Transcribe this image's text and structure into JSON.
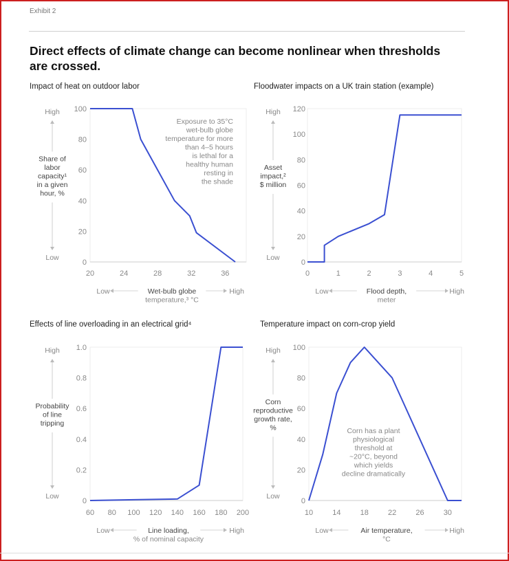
{
  "exhibit_label": "Exhibit 2",
  "headline": "Direct effects of climate change can become nonlinear when thresholds are crossed.",
  "colors": {
    "line": "#3a4fd1",
    "frame": "#cc1f1f",
    "axis": "#dddddd",
    "muted_text": "#888888"
  },
  "chart_data": [
    {
      "id": "heat",
      "type": "line",
      "title": "Impact of heat on outdoor labor",
      "ylabel_lines": [
        "Share of",
        "labor",
        "capacity¹",
        "in a given",
        "hour, %"
      ],
      "y_high": "High",
      "y_low": "Low",
      "xlabel_lines": [
        "Wet-bulb globe",
        "temperature,³ °C"
      ],
      "x_low": "Low",
      "x_high": "High",
      "xlim": [
        20,
        38.5
      ],
      "ylim": [
        0,
        100
      ],
      "xticks": [
        20,
        24,
        28,
        32,
        36
      ],
      "yticks": [
        0,
        20,
        40,
        60,
        80,
        100
      ],
      "x": [
        20,
        25,
        26,
        30,
        31.8,
        32.6,
        37.2
      ],
      "y": [
        100,
        100,
        80,
        40,
        30,
        19,
        0
      ],
      "annotation_lines": [
        "Exposure to 35°C",
        "wet-bulb globe",
        "temperature for more",
        "than 4–5 hours",
        "is lethal for a",
        "healthy human",
        "resting in",
        "the shade"
      ],
      "annotation_anchor": "end"
    },
    {
      "id": "flood",
      "type": "line",
      "title": "Floodwater impacts on a UK train station (example)",
      "ylabel_lines": [
        "Asset",
        "impact,²",
        "$ million"
      ],
      "y_high": "High",
      "y_low": "Low",
      "xlabel_lines": [
        "Flood depth,",
        "meter"
      ],
      "x_low": "Low",
      "x_high": "High",
      "xlim": [
        0,
        5
      ],
      "ylim": [
        0,
        120
      ],
      "xticks": [
        0,
        1,
        2,
        3,
        4,
        5
      ],
      "yticks": [
        0,
        20,
        40,
        60,
        80,
        100,
        120
      ],
      "x": [
        0,
        0.55,
        0.55,
        1.0,
        2.0,
        2.5,
        3.0,
        5.0
      ],
      "y": [
        0,
        0,
        13,
        20,
        30,
        37,
        115,
        115
      ],
      "annotation_lines": [],
      "annotation_anchor": "middle"
    },
    {
      "id": "grid",
      "type": "line",
      "title": "Effects of line overloading in an electrical grid⁴",
      "ylabel_lines": [
        "Probability",
        "of line",
        "tripping"
      ],
      "y_high": "High",
      "y_low": "Low",
      "xlabel_lines": [
        "Line loading,",
        "% of nominal capacity"
      ],
      "x_low": "Low",
      "x_high": "High",
      "xlim": [
        60,
        200
      ],
      "ylim": [
        0,
        1.0
      ],
      "xticks": [
        60,
        80,
        100,
        120,
        140,
        160,
        180,
        200
      ],
      "yticks": [
        0,
        0.2,
        0.4,
        0.6,
        0.8,
        1.0
      ],
      "ytick_labels": [
        "0",
        "0.2",
        "0.4",
        "0.6",
        "0.8",
        "1.0"
      ],
      "x": [
        60,
        100,
        140,
        160,
        180,
        200
      ],
      "y": [
        0,
        0.005,
        0.01,
        0.1,
        1.0,
        1.0
      ],
      "annotation_lines": [],
      "annotation_anchor": "middle"
    },
    {
      "id": "corn",
      "type": "line",
      "title": "Temperature impact on corn-crop yield",
      "ylabel_lines": [
        "Corn",
        "reproductive",
        "growth rate,",
        "%"
      ],
      "y_high": "High",
      "y_low": "Low",
      "xlabel_lines": [
        "Air temperature,",
        "°C"
      ],
      "x_low": "Low",
      "x_high": "High",
      "xlim": [
        10,
        32
      ],
      "ylim": [
        0,
        100
      ],
      "xticks": [
        10,
        14,
        18,
        22,
        26,
        30
      ],
      "yticks": [
        0,
        20,
        40,
        60,
        80,
        100
      ],
      "x": [
        10,
        12,
        14,
        16,
        18,
        22,
        30,
        32
      ],
      "y": [
        0,
        30,
        70,
        90,
        100,
        80,
        0,
        0
      ],
      "annotation_lines": [
        "Corn has a plant",
        "physiological",
        "threshold at",
        "~20°C, beyond",
        "which yields",
        "decline dramatically"
      ],
      "annotation_anchor": "middle"
    }
  ]
}
